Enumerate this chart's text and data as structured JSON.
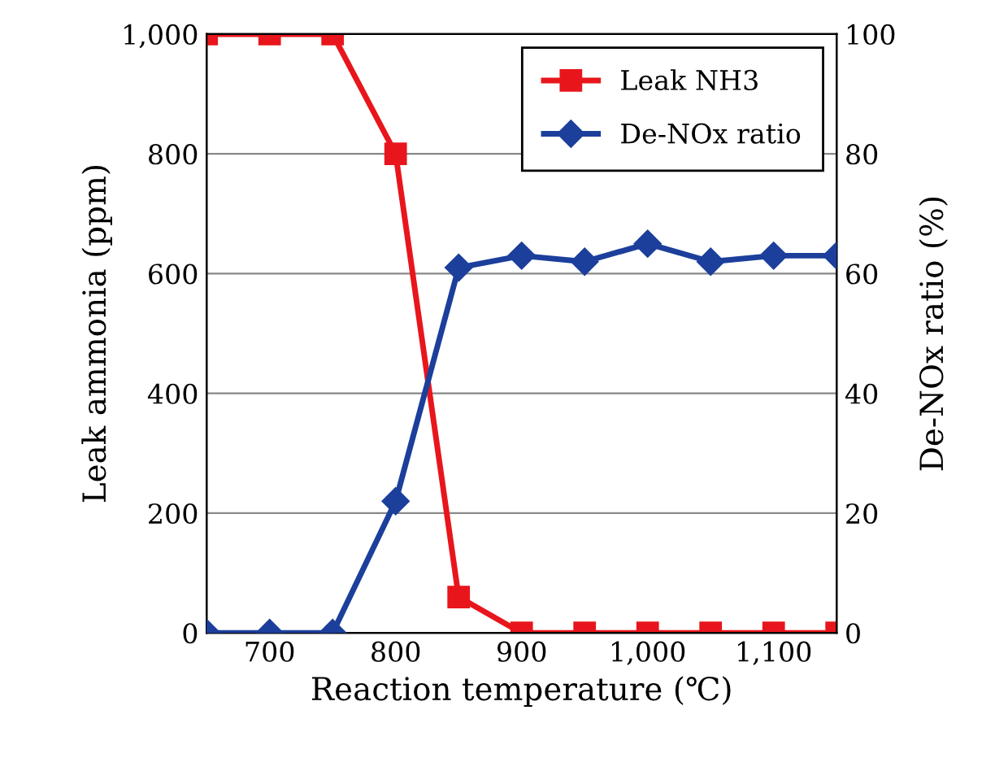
{
  "chart_data": {
    "type": "line",
    "xlabel": "Reaction temperature (℃)",
    "ylabel": "Leak ammonia (ppm)",
    "y2label": "De-NOx ratio (%)",
    "x": [
      650,
      700,
      750,
      800,
      850,
      900,
      950,
      1000,
      1050,
      1100,
      1150
    ],
    "series": [
      {
        "name": "Leak NH3",
        "color": "#e8161c",
        "marker": "square",
        "values": [
          1000,
          1000,
          1000,
          800,
          60,
          0,
          0,
          0,
          0,
          0,
          0
        ]
      },
      {
        "name": "De-NOx ratio",
        "color": "#1c3f9c",
        "marker": "diamond",
        "axis": "y2",
        "values": [
          0,
          0,
          0,
          22,
          61,
          63,
          62,
          65,
          62,
          63,
          63
        ]
      }
    ],
    "xlim": [
      650,
      1150
    ],
    "xticks": [
      700,
      800,
      900,
      {
        "value": 1000,
        "label": "1,000"
      },
      {
        "value": 1100,
        "label": "1,100"
      }
    ],
    "ylim": [
      0,
      1000
    ],
    "yticks": [
      0,
      200,
      400,
      600,
      800,
      {
        "value": 1000,
        "label": "1,000"
      }
    ],
    "y2lim": [
      0,
      100
    ],
    "y2ticks": [
      0,
      20,
      40,
      60,
      80,
      100
    ],
    "grid": "y",
    "legend": "top right",
    "line_style": "solid"
  }
}
